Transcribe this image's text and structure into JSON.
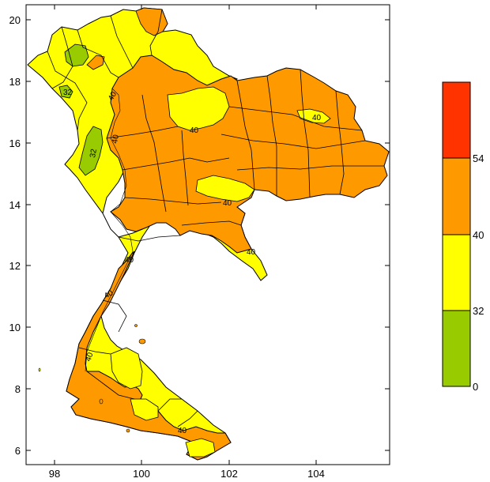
{
  "map": {
    "x_ticks": [
      "98",
      "100",
      "102",
      "104"
    ],
    "y_ticks": [
      "6",
      "8",
      "10",
      "12",
      "14",
      "16",
      "18",
      "20"
    ],
    "contour_labels": [
      "40",
      "40",
      "40",
      "40",
      "40",
      "40",
      "40",
      "40",
      "40",
      "40",
      "32",
      "32"
    ]
  },
  "legend": {
    "bands": [
      {
        "min": 0,
        "max": 32,
        "color": "#99cc00"
      },
      {
        "min": 32,
        "max": 40,
        "color": "#ffff00"
      },
      {
        "min": 40,
        "max": 54,
        "color": "#ff9900"
      },
      {
        "min": 54,
        "max": 100,
        "color": "#ff3300"
      }
    ],
    "tick_labels": [
      "54",
      "40",
      "32",
      "0"
    ]
  },
  "colors": {
    "green": "#99cc00",
    "yellow": "#ffff00",
    "orange": "#ff9900",
    "red": "#ff3300"
  }
}
